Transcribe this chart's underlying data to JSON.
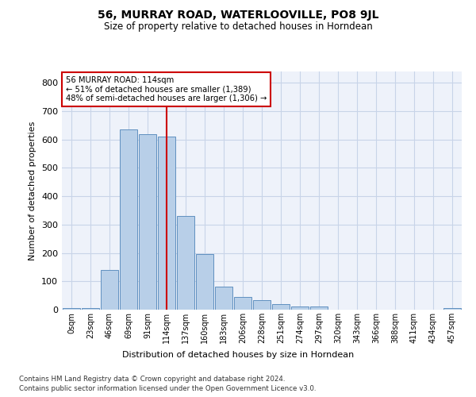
{
  "title": "56, MURRAY ROAD, WATERLOOVILLE, PO8 9JL",
  "subtitle": "Size of property relative to detached houses in Horndean",
  "xlabel": "Distribution of detached houses by size in Horndean",
  "ylabel": "Number of detached properties",
  "footnote1": "Contains HM Land Registry data © Crown copyright and database right 2024.",
  "footnote2": "Contains public sector information licensed under the Open Government Licence v3.0.",
  "bar_color": "#b8cfe8",
  "bar_edge_color": "#6090c0",
  "red_line_color": "#cc0000",
  "annotation_box_color": "#cc0000",
  "grid_color": "#c8d4e8",
  "background_color": "#eef2fa",
  "tick_labels": [
    "0sqm",
    "23sqm",
    "46sqm",
    "69sqm",
    "91sqm",
    "114sqm",
    "137sqm",
    "160sqm",
    "183sqm",
    "206sqm",
    "228sqm",
    "251sqm",
    "274sqm",
    "297sqm",
    "320sqm",
    "343sqm",
    "366sqm",
    "388sqm",
    "411sqm",
    "434sqm",
    "457sqm"
  ],
  "bar_values": [
    5,
    5,
    140,
    635,
    620,
    610,
    330,
    195,
    80,
    45,
    35,
    20,
    10,
    10,
    0,
    0,
    0,
    0,
    0,
    0,
    5
  ],
  "red_line_index": 5,
  "annotation_line1": "56 MURRAY ROAD: 114sqm",
  "annotation_line2": "← 51% of detached houses are smaller (1,389)",
  "annotation_line3": "48% of semi-detached houses are larger (1,306) →",
  "ylim": [
    0,
    840
  ],
  "yticks": [
    0,
    100,
    200,
    300,
    400,
    500,
    600,
    700,
    800
  ]
}
